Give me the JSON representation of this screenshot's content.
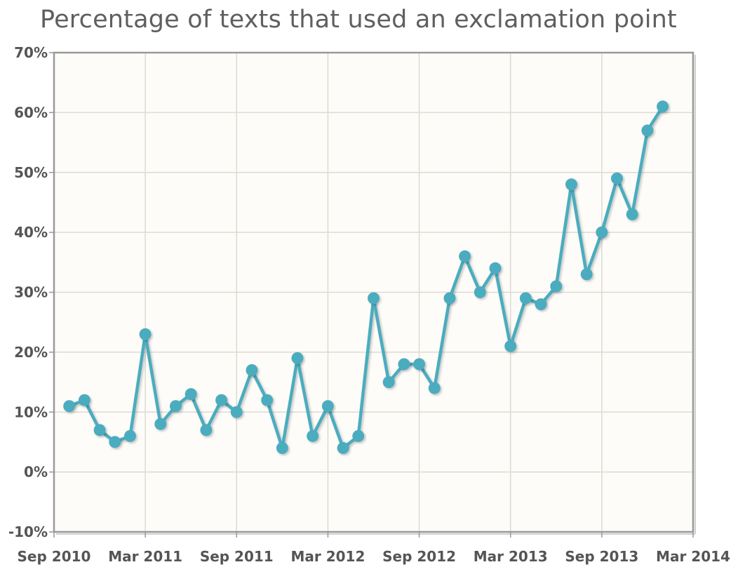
{
  "chart_data": {
    "type": "line",
    "title": "Percentage of texts that used an exclamation point",
    "xlabel": "",
    "ylabel": "",
    "ylim": [
      -10,
      70
    ],
    "y_ticks": [
      "-10%",
      "0%",
      "10%",
      "20%",
      "30%",
      "40%",
      "50%",
      "60%",
      "70%"
    ],
    "x_range": [
      "2010-09",
      "2014-03"
    ],
    "x_ticks": [
      {
        "date": "2010-09",
        "label": "Sep 2010"
      },
      {
        "date": "2011-03",
        "label": "Mar 2011"
      },
      {
        "date": "2011-09",
        "label": "Sep 2011"
      },
      {
        "date": "2012-03",
        "label": "Mar 2012"
      },
      {
        "date": "2012-09",
        "label": "Sep 2012"
      },
      {
        "date": "2013-03",
        "label": "Mar 2013"
      },
      {
        "date": "2013-09",
        "label": "Sep 2013"
      },
      {
        "date": "2014-03",
        "label": "Mar 2014"
      }
    ],
    "grid": true,
    "series": [
      {
        "color": "#4cacbf",
        "points": [
          {
            "x": "2010-10",
            "y": 11
          },
          {
            "x": "2010-11",
            "y": 12
          },
          {
            "x": "2010-12",
            "y": 7
          },
          {
            "x": "2011-01",
            "y": 5
          },
          {
            "x": "2011-02",
            "y": 6
          },
          {
            "x": "2011-03",
            "y": 23
          },
          {
            "x": "2011-04",
            "y": 8
          },
          {
            "x": "2011-05",
            "y": 11
          },
          {
            "x": "2011-06",
            "y": 13
          },
          {
            "x": "2011-07",
            "y": 7
          },
          {
            "x": "2011-08",
            "y": 12
          },
          {
            "x": "2011-09",
            "y": 10
          },
          {
            "x": "2011-10",
            "y": 17
          },
          {
            "x": "2011-11",
            "y": 12
          },
          {
            "x": "2011-12",
            "y": 4
          },
          {
            "x": "2012-01",
            "y": 19
          },
          {
            "x": "2012-02",
            "y": 6
          },
          {
            "x": "2012-03",
            "y": 11
          },
          {
            "x": "2012-04",
            "y": 4
          },
          {
            "x": "2012-05",
            "y": 6
          },
          {
            "x": "2012-06",
            "y": 29
          },
          {
            "x": "2012-07",
            "y": 15
          },
          {
            "x": "2012-08",
            "y": 18
          },
          {
            "x": "2012-09",
            "y": 18
          },
          {
            "x": "2012-10",
            "y": 14
          },
          {
            "x": "2012-11",
            "y": 29
          },
          {
            "x": "2012-12",
            "y": 36
          },
          {
            "x": "2013-01",
            "y": 30
          },
          {
            "x": "2013-02",
            "y": 34
          },
          {
            "x": "2013-03",
            "y": 21
          },
          {
            "x": "2013-04",
            "y": 29
          },
          {
            "x": "2013-05",
            "y": 28
          },
          {
            "x": "2013-06",
            "y": 31
          },
          {
            "x": "2013-07",
            "y": 48
          },
          {
            "x": "2013-08",
            "y": 33
          },
          {
            "x": "2013-09",
            "y": 40
          },
          {
            "x": "2013-10",
            "y": 49
          },
          {
            "x": "2013-11",
            "y": 43
          },
          {
            "x": "2013-12",
            "y": 57
          },
          {
            "x": "2014-01",
            "y": 61
          }
        ]
      }
    ],
    "colors": {
      "plot_background": "#fdfcf8",
      "grid": "#dedad4",
      "axis": "#999999",
      "line": "#4cacbf"
    }
  }
}
